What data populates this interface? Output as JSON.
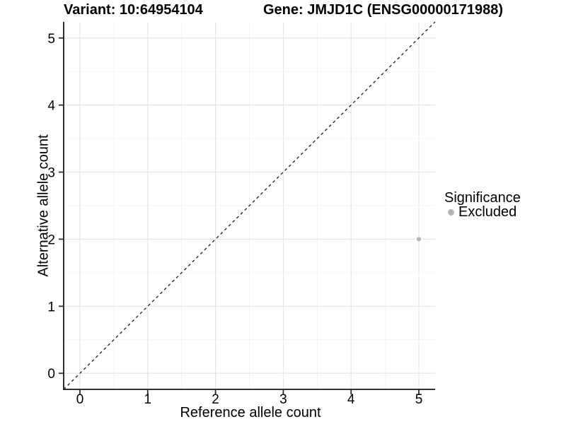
{
  "titles": {
    "left": "Variant: 10:64954104",
    "right": "Gene: JMJD1C (ENSG00000171988)"
  },
  "legend": {
    "title": "Significance",
    "position": "right",
    "items": [
      {
        "label": "Excluded",
        "color": "#b5b5b5"
      }
    ]
  },
  "colors": {
    "background": "#ffffff",
    "grid_major": "#e4e4e4",
    "grid_minor": "#f1f1f1",
    "axis_line": "#2f2f2f",
    "text": "#000000",
    "identity_line": "#1a1a1a",
    "point": "#b5b5b5"
  },
  "chart_data": {
    "type": "scatter",
    "x": {
      "label": "Reference allele count",
      "ticks": [
        0,
        1,
        2,
        3,
        4,
        5
      ],
      "minor_ticks": [
        0.5,
        1.5,
        2.5,
        3.5,
        4.5
      ],
      "range": [
        -0.24,
        5.24
      ]
    },
    "y": {
      "label": "Alternative allele count",
      "ticks": [
        0,
        1,
        2,
        3,
        4,
        5
      ],
      "minor_ticks": [
        0.5,
        1.5,
        2.5,
        3.5,
        4.5
      ],
      "range": [
        -0.24,
        5.24
      ]
    },
    "points": [
      {
        "x": 5,
        "y": 2,
        "series": "Excluded"
      }
    ],
    "reference_line": {
      "style": "dashed",
      "slope": 1,
      "intercept": 0,
      "from": [
        -0.24,
        -0.24
      ],
      "to": [
        5.24,
        5.24
      ]
    },
    "grid": true,
    "legend_position": "right"
  }
}
